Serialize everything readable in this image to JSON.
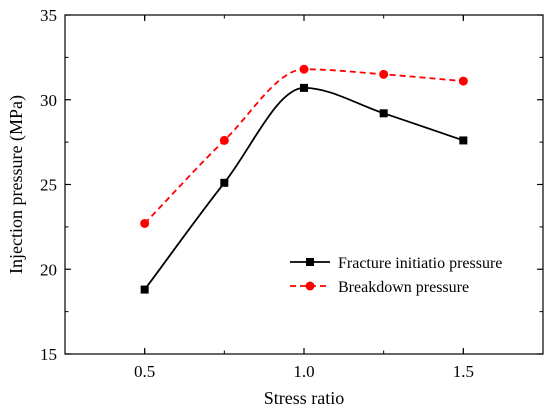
{
  "chart_data": {
    "type": "line",
    "title": "",
    "xlabel": "Stress ratio",
    "ylabel": "Injection pressure (MPa)",
    "xlim": [
      0.25,
      1.75
    ],
    "ylim": [
      15,
      35
    ],
    "xticks": [
      0.5,
      1.0,
      1.5
    ],
    "xtick_labels": [
      "0.5",
      "1.0",
      "1.5"
    ],
    "yticks": [
      15,
      20,
      25,
      30,
      35
    ],
    "ytick_labels": [
      "15",
      "20",
      "25",
      "30",
      "35"
    ],
    "grid": false,
    "legend_position": "lower-right",
    "series": [
      {
        "name": "Fracture initiatio pressure",
        "x": [
          0.5,
          0.75,
          1.0,
          1.25,
          1.5
        ],
        "y": [
          18.8,
          25.1,
          30.7,
          29.2,
          27.6
        ],
        "color": "#000000",
        "line_style": "solid",
        "marker": "square"
      },
      {
        "name": "Breakdown pressure",
        "x": [
          0.5,
          0.75,
          1.0,
          1.25,
          1.5
        ],
        "y": [
          22.7,
          27.6,
          31.8,
          31.5,
          31.1
        ],
        "color": "#ff0000",
        "line_style": "dashed",
        "marker": "circle"
      }
    ]
  }
}
